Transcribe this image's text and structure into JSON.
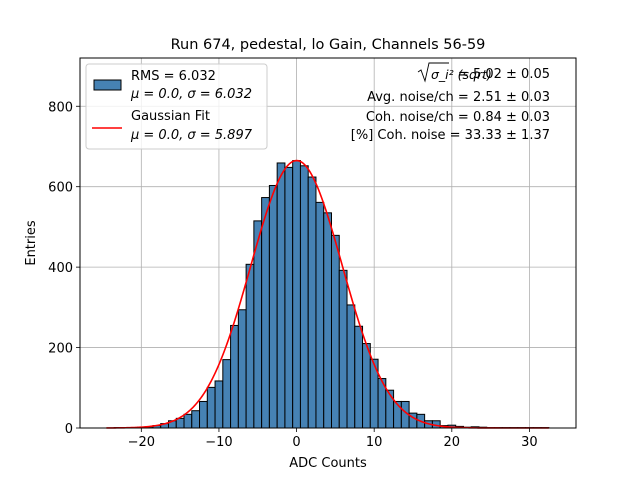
{
  "chart_data": {
    "type": "histogram",
    "title": "Run 674, pedestal, lo Gain, Channels 56-59",
    "xlabel": "ADC Counts",
    "ylabel": "Entries",
    "xlim": [
      -27.9,
      36.0
    ],
    "ylim": [
      0,
      920
    ],
    "xticks": [
      -20,
      -10,
      0,
      10,
      20,
      30
    ],
    "yticks": [
      0,
      200,
      400,
      600,
      800
    ],
    "grid": true,
    "bin_width": 1,
    "bin_start": -24.5,
    "counts": [
      0,
      1,
      1,
      1,
      2,
      3,
      6,
      11,
      18,
      24,
      34,
      43,
      66,
      101,
      117,
      170,
      255,
      294,
      407,
      515,
      573,
      603,
      659,
      648,
      665,
      652,
      624,
      561,
      535,
      479,
      392,
      306,
      253,
      210,
      171,
      123,
      94,
      66,
      66,
      37,
      34,
      18,
      18,
      6,
      7,
      4,
      2,
      3,
      2,
      1,
      1,
      1,
      1,
      1,
      1,
      1,
      1
    ],
    "histogram_color": "#4682b4",
    "fit": {
      "label_line1": "Gaussian Fit",
      "label_line2": "μ = 0.0, σ = 5.897",
      "mu": 0.0,
      "sigma": 5.897,
      "amplitude": 665,
      "x_range": [
        -24.5,
        32.5
      ],
      "color": "#ff0000"
    },
    "legend": {
      "placement": "top-left",
      "hist_label_line1": "RMS = 6.032",
      "hist_label_line2": "μ = 0.0, σ = 6.032"
    },
    "annotations": [
      {
        "key": "σ_i² (sqrt)",
        "value": "= 5.02 ± 0.05"
      },
      {
        "text": "Avg. noise/ch = 2.51 ± 0.03"
      },
      {
        "text": "Coh. noise/ch = 0.84 ± 0.03"
      },
      {
        "text": "[%] Coh. noise = 33.33 ± 1.37"
      }
    ]
  }
}
